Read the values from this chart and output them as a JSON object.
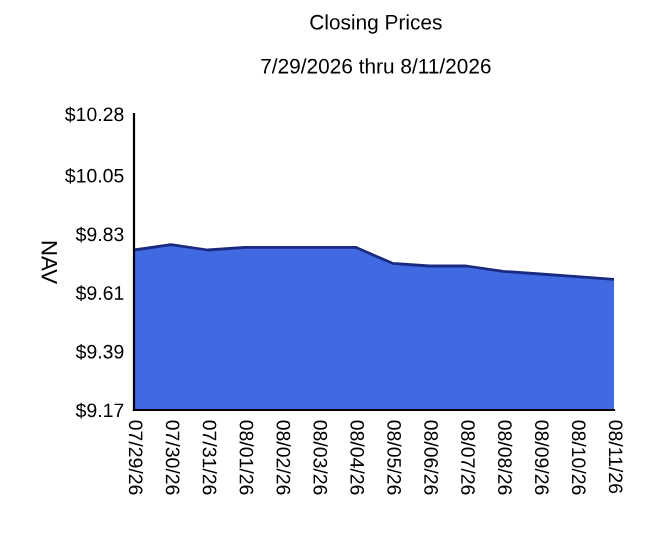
{
  "chart_data": {
    "type": "area",
    "title": "Closing Prices",
    "subtitle": "7/29/2026 thru 8/11/2026",
    "ylabel": "NAV",
    "categories": [
      "07/29/26",
      "07/30/26",
      "07/31/26",
      "08/01/26",
      "08/02/26",
      "08/03/26",
      "08/04/26",
      "08/05/26",
      "08/06/26",
      "08/07/26",
      "08/08/26",
      "08/09/26",
      "08/10/26",
      "08/11/26"
    ],
    "series": [
      {
        "color": "#4169e1",
        "values": [
          9.77,
          9.79,
          9.77,
          9.78,
          9.78,
          9.78,
          9.78,
          9.72,
          9.71,
          9.71,
          9.69,
          9.68,
          9.67,
          9.66
        ]
      }
    ],
    "ylim": [
      9.17,
      10.28
    ],
    "yticks": [
      {
        "value": 9.17,
        "label": "$9.17"
      },
      {
        "value": 9.39,
        "label": "$9.39"
      },
      {
        "value": 9.61,
        "label": "$9.61"
      },
      {
        "value": 9.83,
        "label": "$9.83"
      },
      {
        "value": 10.05,
        "label": "$10.05"
      },
      {
        "value": 10.28,
        "label": "$10.28"
      }
    ],
    "grid": false,
    "legend": false
  }
}
